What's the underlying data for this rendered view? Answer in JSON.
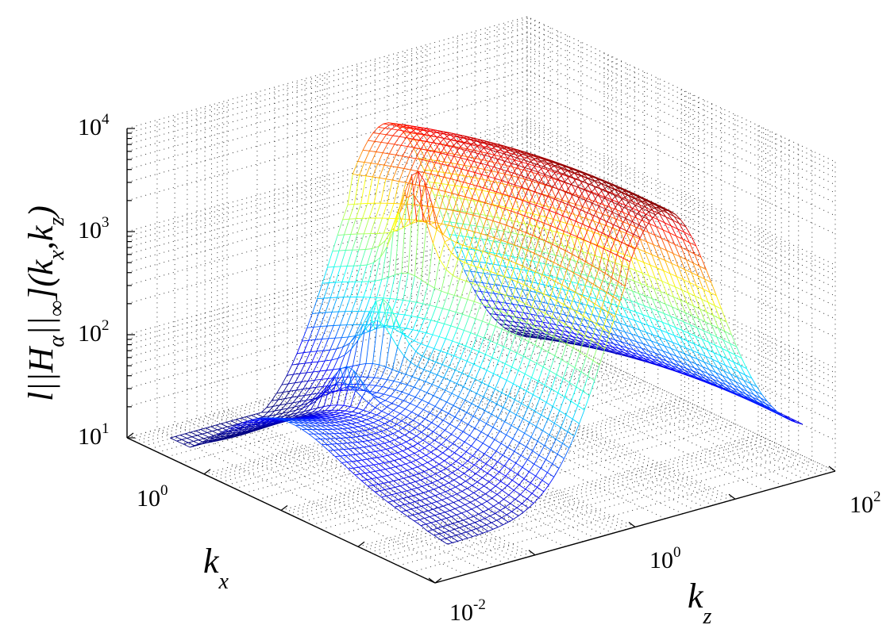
{
  "chart_data": {
    "type": "surface",
    "title": "",
    "colormap": "jet",
    "grid": true,
    "zlabel": {
      "main_left": "l",
      "bars_left": "||",
      "H": "H",
      "alpha": "α",
      "bars_right": "||",
      "inf": "∞",
      "main_mid": "](k",
      "x": "x",
      "comma": ",k",
      "z": "z",
      "main_right": ")"
    },
    "xlabel": {
      "k": "k",
      "sub": "x"
    },
    "ylabel": {
      "k": "k",
      "sub": "z"
    },
    "z_scale": "log",
    "z_range": [
      10,
      10000
    ],
    "z_ticks": [
      {
        "base": "10",
        "exp": "1"
      },
      {
        "base": "10",
        "exp": "2"
      },
      {
        "base": "10",
        "exp": "3"
      },
      {
        "base": "10",
        "exp": "4"
      }
    ],
    "kx_scale": "log",
    "kx_range": [
      0.01,
      100
    ],
    "kx_ticks": [
      {
        "base": "10",
        "exp": "0"
      }
    ],
    "kz_scale": "log",
    "kz_range": [
      0.01,
      100
    ],
    "kz_ticks": [
      {
        "base": "10",
        "exp": "-2"
      },
      {
        "base": "10",
        "exp": "0"
      },
      {
        "base": "10",
        "exp": "2"
      }
    ],
    "surface_peak": {
      "z": 9000,
      "note": "maximum near kz ≈ 10^0.3 over mid-range kx"
    }
  }
}
